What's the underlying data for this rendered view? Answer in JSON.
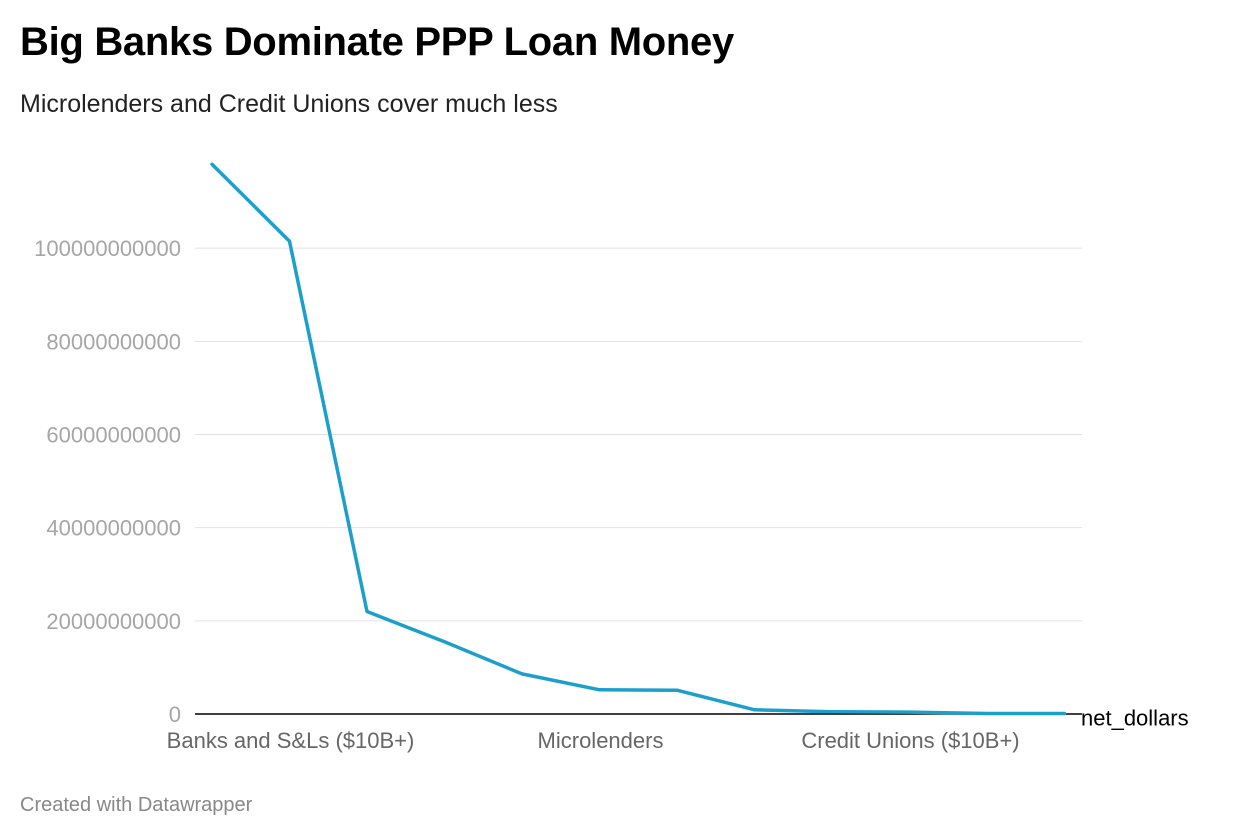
{
  "title": "Big Banks Dominate PPP Loan Money",
  "subtitle": "Microlenders and Credit Unions cover much less",
  "footer": "Created with Datawrapper",
  "colors": {
    "line": "#1d9fcc",
    "grid": "#e2e2e2",
    "baseline": "#000000"
  },
  "chart_data": {
    "type": "line",
    "x_tick_labels": [
      "Banks and S&Ls ($10B+)",
      "Microlenders",
      "Credit Unions ($10B+)"
    ],
    "x_tick_indices": [
      1,
      5,
      9
    ],
    "y_ticks": [
      0,
      20000000000,
      40000000000,
      60000000000,
      80000000000,
      100000000000
    ],
    "y_tick_labels": [
      "0",
      "20000000000",
      "40000000000",
      "60000000000",
      "80000000000",
      "100000000000"
    ],
    "ylim": [
      0,
      120000000000
    ],
    "grid": true,
    "series": [
      {
        "name": "net_dollars",
        "values": [
          118000000000,
          101500000000,
          22000000000,
          15500000000,
          8600000000,
          5200000000,
          5100000000,
          900000000,
          500000000,
          400000000,
          100000000,
          100000000
        ]
      }
    ]
  }
}
